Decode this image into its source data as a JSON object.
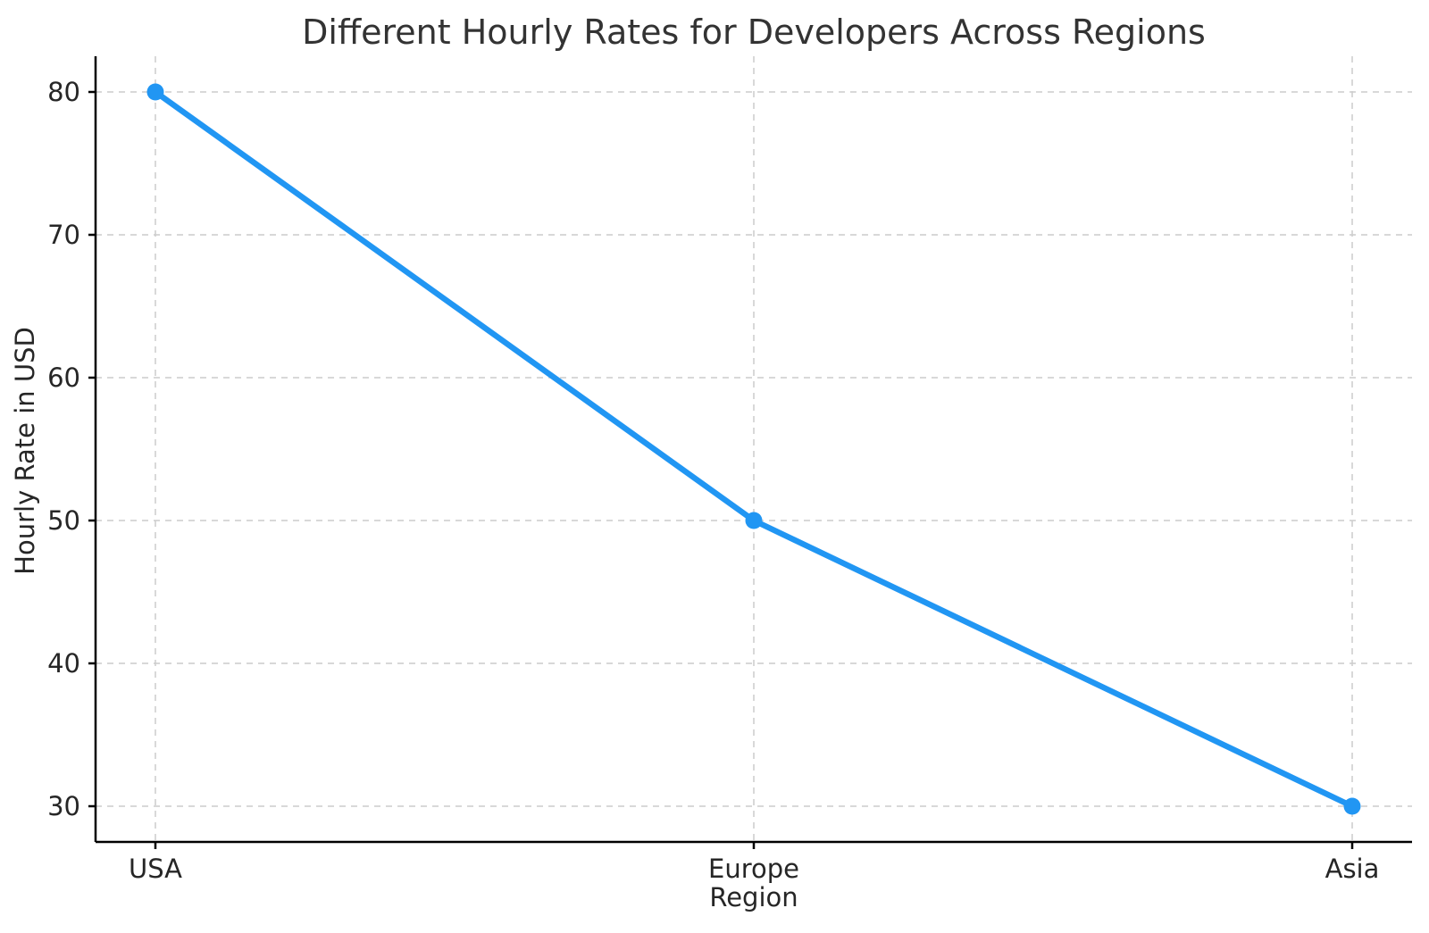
{
  "chart_data": {
    "type": "line",
    "title": "Different Hourly Rates for Developers Across Regions",
    "xlabel": "Region",
    "ylabel": "Hourly Rate in USD",
    "categories": [
      "USA",
      "Europe",
      "Asia"
    ],
    "values": [
      80,
      50,
      30
    ],
    "yticks": [
      30,
      40,
      50,
      60,
      70,
      80
    ],
    "ylim": [
      27.5,
      82.5
    ],
    "grid": true,
    "grid_style": "dashed",
    "legend_position": "none",
    "colors": {
      "line": "#2196F3",
      "marker": "#2196F3",
      "grid": "#cccccc",
      "axis": "#000000",
      "tick_text": "#262626",
      "title_text": "#333333",
      "background": "#ffffff"
    }
  }
}
